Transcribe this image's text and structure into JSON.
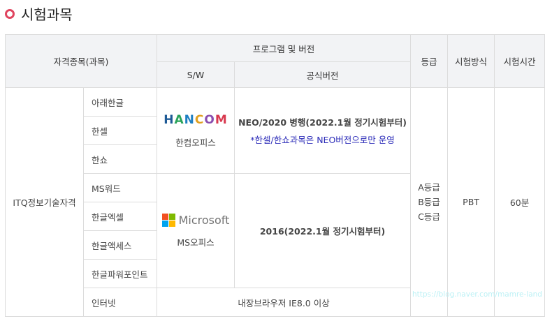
{
  "section_title": "시험과목",
  "accent_color": "#e0455f",
  "headers": {
    "qualification": "자격종목(과목)",
    "program": "프로그램 및 버전",
    "sw": "S/W",
    "version": "공식버전",
    "grade": "등급",
    "method": "시험방식",
    "time": "시험시간"
  },
  "qualification": "ITQ정보기술자격",
  "subjects": [
    "아래한글",
    "한셀",
    "한쇼",
    "MS워드",
    "한글엑셀",
    "한글액세스",
    "한글파워포인트",
    "인터넷"
  ],
  "hancom": {
    "logo_text": "HANCOM",
    "name": "한컴오피스",
    "version": "NEO/2020 병행(2022.1월 정기시험부터)",
    "note": "*한셀/한쇼과목은 NEO버전으로만 운영"
  },
  "microsoft": {
    "logo_text": "Microsoft",
    "name": "MS오피스",
    "version": "2016(2022.1월 정기시험부터)"
  },
  "internet_version": "내장브라우저 IE8.0 이상",
  "grades": [
    "A등급",
    "B등급",
    "C등급"
  ],
  "method": "PBT",
  "time": "60분",
  "watermark": "https://blog.naver.com/mamre-land"
}
